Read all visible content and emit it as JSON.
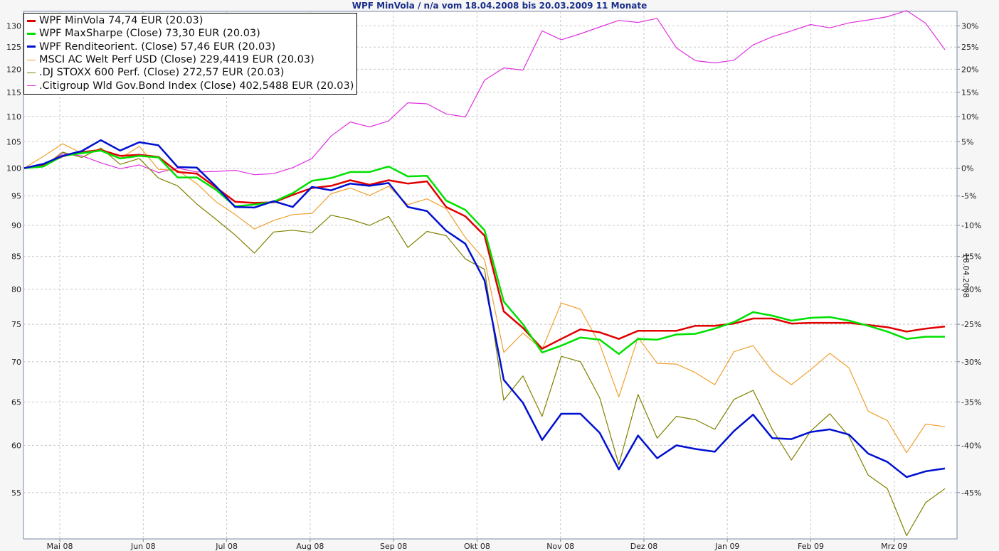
{
  "title": "WPF MinVola / n/a vom 18.04.2008 bis 20.03.2009 11 Monate",
  "date_label": "18.04.2008",
  "chart_data": {
    "type": "line",
    "title": "WPF MinVola / n/a vom 18.04.2008 bis 20.03.2009 11 Monate",
    "x_tick_labels": [
      "Mai 08",
      "Jun 08",
      "Jul 08",
      "Aug 08",
      "Sep 08",
      "Okt 08",
      "Nov 08",
      "Dez 08",
      "Jan 09",
      "Feb 09",
      "Mrz 09"
    ],
    "y_left_ticks": [
      55,
      60,
      65,
      70,
      75,
      80,
      85,
      90,
      95,
      100,
      105,
      110,
      115,
      120,
      125,
      130
    ],
    "y_right_ticks": [
      "30%",
      "25%",
      "20%",
      "15%",
      "10%",
      "5%",
      "0%",
      "-5%",
      "-10%",
      "-15%",
      "-20%",
      "-25%",
      "-30%",
      "-35%",
      "-40%",
      "-45%"
    ],
    "y_log_scale": true,
    "ylim": [
      50.5,
      133.5
    ],
    "grid": true,
    "legend_position": "top-left",
    "series": [
      {
        "name": "WPF MinVola 74,74 EUR (20.03)",
        "color": "#e00000",
        "width": 2.5,
        "values": [
          100,
          100.5,
          102.2,
          103,
          103.4,
          102.3,
          102.5,
          102.1,
          99.3,
          99.0,
          96.5,
          94.0,
          93.8,
          93.9,
          95.2,
          96.4,
          96.8,
          97.8,
          97.0,
          97.8,
          97.2,
          97.6,
          93.1,
          91.5,
          88.3,
          76.8,
          74.5,
          71.7,
          73.0,
          74.3,
          73.9,
          73.0,
          74.1,
          74.1,
          74.1,
          74.8,
          74.8,
          75.1,
          75.8,
          75.8,
          75.1,
          75.2,
          75.2,
          75.2,
          74.9,
          74.6,
          74.0,
          74.4,
          74.7
        ]
      },
      {
        "name": "WPF MaxSharpe (Close) 73,30 EUR (20.03)",
        "color": "#00e000",
        "width": 2.5,
        "values": [
          100,
          100.3,
          102.3,
          102.8,
          103.3,
          101.8,
          102.3,
          102.0,
          98.3,
          98.3,
          96.1,
          93.2,
          93.5,
          94.0,
          95.5,
          97.7,
          98.2,
          99.3,
          99.3,
          100.3,
          98.5,
          98.6,
          94.2,
          92.6,
          89.2,
          78.2,
          75.0,
          71.2,
          72.1,
          73.2,
          72.9,
          71.0,
          73.0,
          72.9,
          73.6,
          73.7,
          74.4,
          75.3,
          76.7,
          76.2,
          75.5,
          75.9,
          76.0,
          75.5,
          74.8,
          74.0,
          73.0,
          73.3,
          73.3
        ]
      },
      {
        "name": "WPF Renditeorient. (Close) 57,46 EUR (20.03)",
        "color": "#0010d0",
        "width": 2.5,
        "values": [
          100,
          100.8,
          102.3,
          103.2,
          105.3,
          103.3,
          104.9,
          104.3,
          100.2,
          100.1,
          96.7,
          93.1,
          93.0,
          94.1,
          93.1,
          96.6,
          96.0,
          97.2,
          96.8,
          97.3,
          93.1,
          92.4,
          89.1,
          87.0,
          81.3,
          67.7,
          64.9,
          60.6,
          63.6,
          63.6,
          61.4,
          57.4,
          61.1,
          58.6,
          60.0,
          59.6,
          59.3,
          61.6,
          63.5,
          60.8,
          60.7,
          61.5,
          61.8,
          61.2,
          59.1,
          58.2,
          56.6,
          57.2,
          57.5
        ]
      },
      {
        "name": "MSCI AC Welt Perf USD (Close) 229,4419 EUR (20.03)",
        "color": "#f0a030",
        "width": 1.2,
        "values": [
          100,
          102.2,
          104.6,
          102.8,
          103.6,
          101.8,
          104.1,
          99.8,
          99.6,
          97.2,
          94.0,
          91.8,
          89.4,
          90.8,
          91.8,
          92.0,
          95.4,
          96.4,
          95.1,
          96.7,
          93.5,
          94.5,
          92.8,
          88.0,
          84.5,
          71.2,
          73.8,
          71.6,
          78.0,
          77.1,
          72.3,
          65.6,
          73.2,
          69.8,
          69.7,
          68.6,
          67.1,
          71.3,
          72.1,
          68.8,
          67.1,
          69.0,
          71.1,
          69.2,
          63.9,
          62.8,
          59.2,
          62.4,
          62.1
        ]
      },
      {
        "name": ".DJ STOXX 600 Perf. (Close) 272,57 EUR (20.03)",
        "color": "#808000",
        "width": 1.2,
        "values": [
          100,
          100.3,
          103.0,
          102.0,
          103.8,
          100.7,
          101.8,
          98.2,
          96.8,
          93.6,
          91.0,
          88.4,
          85.5,
          88.9,
          89.2,
          88.8,
          91.7,
          91.0,
          90.0,
          91.5,
          86.4,
          89.0,
          88.3,
          84.6,
          83.0,
          65.2,
          68.2,
          63.3,
          70.7,
          70.0,
          65.5,
          57.9,
          65.9,
          60.8,
          63.3,
          62.9,
          61.8,
          65.3,
          66.4,
          61.8,
          58.4,
          61.6,
          63.6,
          61.0,
          56.8,
          55.4,
          50.8,
          54.0,
          55.4
        ]
      },
      {
        "name": ".Citigroup Wld Gov.Bond Index (Close) 402,5488 EUR (20.03)",
        "color": "#e030e0",
        "width": 1.2,
        "values": [
          100,
          100.5,
          102.7,
          102.3,
          101.0,
          99.9,
          100.6,
          99.2,
          100.0,
          99.3,
          99.4,
          99.6,
          98.8,
          99.0,
          100.1,
          101.8,
          106.1,
          108.9,
          107.9,
          109.1,
          112.8,
          112.6,
          110.5,
          109.9,
          117.6,
          120.3,
          119.8,
          128.8,
          126.7,
          128.1,
          129.7,
          131.3,
          130.8,
          131.8,
          124.8,
          121.9,
          121.4,
          122.0,
          125.5,
          127.4,
          128.8,
          130.3,
          129.5,
          130.7,
          131.4,
          132.2,
          133.7,
          130.6,
          124.4
        ]
      }
    ]
  }
}
